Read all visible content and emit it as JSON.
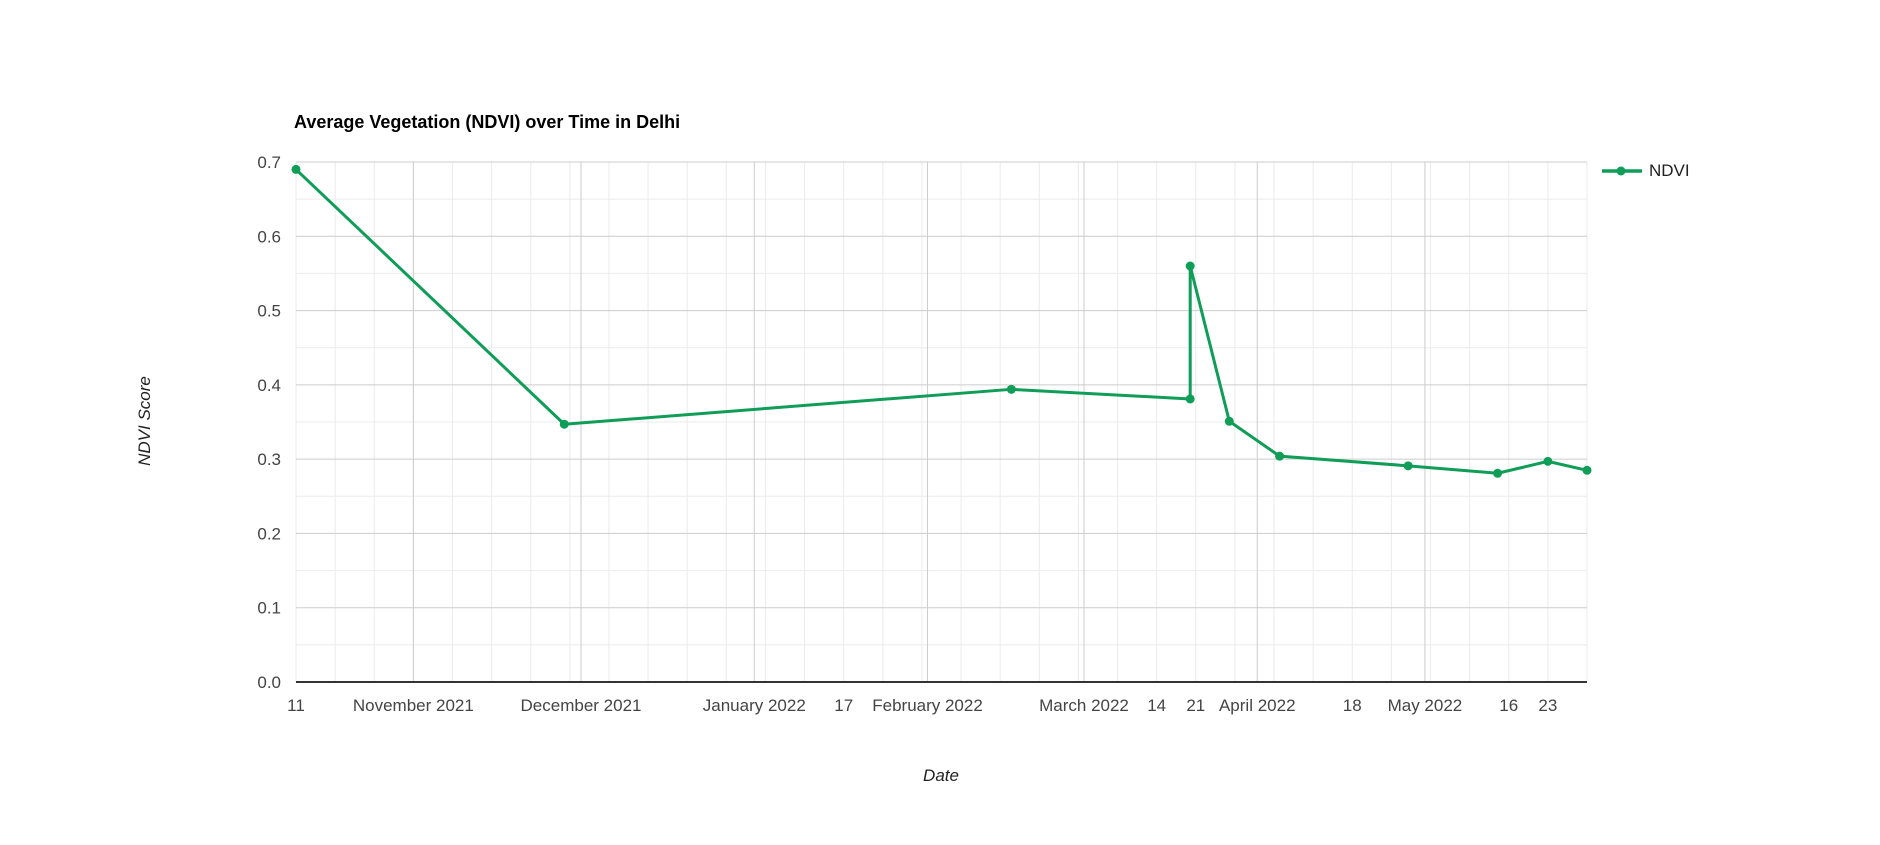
{
  "chart_data": {
    "type": "line",
    "title": "Average Vegetation (NDVI) over Time in Delhi",
    "xlabel": "Date",
    "ylabel": "NDVI Score",
    "ylim": [
      0.0,
      0.7
    ],
    "grid": true,
    "legend_position": "right",
    "x_domain": [
      "2021-10-11",
      "2022-05-30"
    ],
    "y_ticks": [
      {
        "label": "0.0",
        "value": 0.0
      },
      {
        "label": "0.1",
        "value": 0.1
      },
      {
        "label": "0.2",
        "value": 0.2
      },
      {
        "label": "0.3",
        "value": 0.3
      },
      {
        "label": "0.4",
        "value": 0.4
      },
      {
        "label": "0.5",
        "value": 0.5
      },
      {
        "label": "0.6",
        "value": 0.6
      },
      {
        "label": "0.7",
        "value": 0.7
      }
    ],
    "y_minor_step": 0.05,
    "x_minor_grid_interval_days": 7,
    "x_month_ticks": [
      {
        "label": "November 2021",
        "date": "2021-11-01"
      },
      {
        "label": "December 2021",
        "date": "2021-12-01"
      },
      {
        "label": "January 2022",
        "date": "2022-01-01"
      },
      {
        "label": "February 2022",
        "date": "2022-02-01"
      },
      {
        "label": "March 2022",
        "date": "2022-03-01"
      },
      {
        "label": "April 2022",
        "date": "2022-04-01"
      },
      {
        "label": "May 2022",
        "date": "2022-05-01"
      }
    ],
    "x_day_ticks": [
      {
        "label": "11",
        "date": "2021-10-11"
      },
      {
        "label": "17",
        "date": "2022-01-17"
      },
      {
        "label": "14",
        "date": "2022-03-14"
      },
      {
        "label": "21",
        "date": "2022-03-21"
      },
      {
        "label": "18",
        "date": "2022-04-18"
      },
      {
        "label": "16",
        "date": "2022-05-16"
      },
      {
        "label": "23",
        "date": "2022-05-23"
      }
    ],
    "series": [
      {
        "name": "NDVI",
        "color": "#0f9d58",
        "points": [
          {
            "date": "2021-10-11",
            "value": 0.69
          },
          {
            "date": "2021-11-28",
            "value": 0.347
          },
          {
            "date": "2022-02-16",
            "value": 0.394
          },
          {
            "date": "2022-03-20",
            "value": 0.381
          },
          {
            "date": "2022-03-20",
            "value": 0.56
          },
          {
            "date": "2022-03-27",
            "value": 0.351
          },
          {
            "date": "2022-04-05",
            "value": 0.304
          },
          {
            "date": "2022-04-28",
            "value": 0.291
          },
          {
            "date": "2022-05-14",
            "value": 0.281
          },
          {
            "date": "2022-05-23",
            "value": 0.297
          },
          {
            "date": "2022-05-30",
            "value": 0.285
          }
        ]
      }
    ],
    "colors": {
      "background": "#ffffff",
      "grid_major": "#cccccc",
      "grid_minor": "#ebebeb",
      "axis_line": "#333333",
      "tick_text": "#444444",
      "axis_title_text": "#222222",
      "title_text": "#000000",
      "legend_text": "#212121"
    }
  }
}
